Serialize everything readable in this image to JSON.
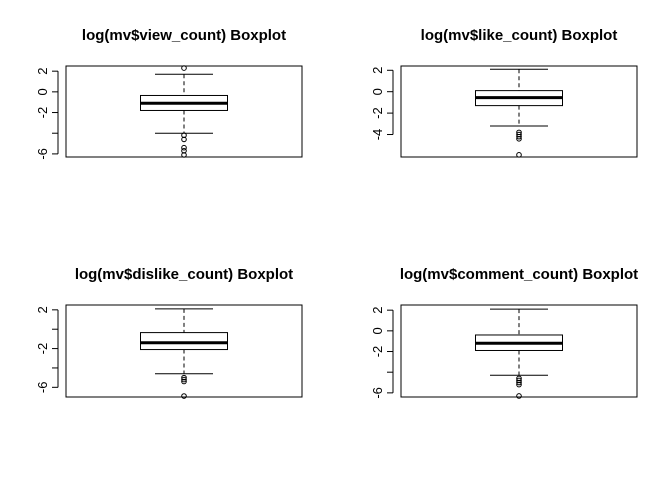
{
  "chart_data": [
    {
      "type": "boxplot",
      "title": "log(mv$view_count) Boxplot",
      "ylim": [
        -6.3,
        2.5
      ],
      "yticks": [
        2,
        0,
        -2,
        -4,
        -6
      ],
      "ytick_labels": [
        "2",
        "0",
        "-2",
        "",
        "-6"
      ],
      "whisker_low": -4.0,
      "q1": -1.8,
      "median": -1.1,
      "q3": -0.35,
      "whisker_high": 1.7,
      "outliers": [
        2.3,
        -4.2,
        -4.6,
        -5.4,
        -5.7,
        -6.1
      ]
    },
    {
      "type": "boxplot",
      "title": "log(mv$like_count) Boxplot",
      "ylim": [
        -6.1,
        2.4
      ],
      "yticks": [
        2,
        0,
        -2,
        -4
      ],
      "ytick_labels": [
        "2",
        "0",
        "-2",
        "-4"
      ],
      "whisker_low": -3.2,
      "q1": -1.3,
      "median": -0.55,
      "q3": 0.1,
      "whisker_high": 2.1,
      "outliers": [
        -3.8,
        -4.0,
        -4.2,
        -4.4,
        -5.9
      ]
    },
    {
      "type": "boxplot",
      "title": "log(mv$dislike_count) Boxplot",
      "ylim": [
        -7.0,
        2.5
      ],
      "yticks": [
        2,
        0,
        -2,
        -4,
        -6
      ],
      "ytick_labels": [
        "2",
        "",
        "-2",
        "",
        "-6"
      ],
      "whisker_low": -4.6,
      "q1": -2.1,
      "median": -1.4,
      "q3": -0.35,
      "whisker_high": 2.1,
      "outliers": [
        -5.0,
        -5.2,
        -5.4,
        -6.9
      ]
    },
    {
      "type": "boxplot",
      "title": "log(mv$comment_count) Boxplot",
      "ylim": [
        -6.4,
        2.5
      ],
      "yticks": [
        2,
        0,
        -2,
        -4,
        -6
      ],
      "ytick_labels": [
        "2",
        "0",
        "-2",
        "",
        "-6"
      ],
      "whisker_low": -4.3,
      "q1": -1.9,
      "median": -1.2,
      "q3": -0.4,
      "whisker_high": 2.1,
      "outliers": [
        -4.6,
        -4.8,
        -5.0,
        -5.2,
        -6.3
      ]
    }
  ]
}
